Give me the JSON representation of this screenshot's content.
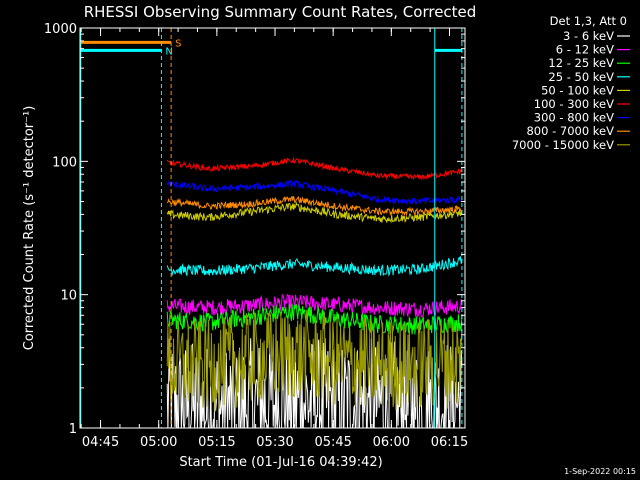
{
  "chart_data": {
    "type": "line",
    "title": "RHESSI Observing Summary Count Rates, Corrected",
    "xlabel": "Start Time (01-Jul-16 04:39:42)",
    "ylabel": "Corrected Count Rate (s⁻¹ detector⁻¹)",
    "x_ticks": [
      "04:45",
      "05:00",
      "05:15",
      "05:30",
      "05:45",
      "06:00",
      "06:15"
    ],
    "x_tick_minutes": [
      5.3,
      20.3,
      35.3,
      50.3,
      65.3,
      80.3,
      95.3
    ],
    "xlim_minutes": [
      0,
      99.3
    ],
    "y_ticks": [
      "1",
      "10",
      "100",
      "1000"
    ],
    "ylim": [
      1,
      1000
    ],
    "y_scale": "log",
    "grid": false,
    "legend_placement": "top-right",
    "legend_title": "Det 1,3, Att 0",
    "data_start_minute": 22.5,
    "data_end_minute": 98.5,
    "series": [
      {
        "name": "3 - 6 keV",
        "color": "#ffffff",
        "level": [
          1.5,
          1.4,
          1.5,
          1.6,
          1.5,
          1.5,
          1.4,
          1.6
        ],
        "noise": 0.5
      },
      {
        "name": "6 - 12 keV",
        "color": "#ff00ff",
        "level": [
          8.2,
          8.0,
          8.3,
          8.8,
          8.4,
          8.0,
          7.8,
          8.2
        ],
        "noise": 0.06
      },
      {
        "name": "12 - 25 keV",
        "color": "#00ff00",
        "level": [
          6.5,
          6.2,
          6.8,
          7.5,
          6.6,
          6.0,
          5.9,
          6.2
        ],
        "noise": 0.07
      },
      {
        "name": "25 - 50 keV",
        "color": "#00ffff",
        "level": [
          15.5,
          15.0,
          15.8,
          17.0,
          16.0,
          15.2,
          15.5,
          18.0
        ],
        "noise": 0.04
      },
      {
        "name": "50 - 100 keV",
        "color": "#cccc00",
        "level": [
          40,
          38,
          42,
          46,
          40,
          37,
          38,
          41
        ],
        "noise": 0.03
      },
      {
        "name": "100 - 300 keV",
        "color": "#ff0000",
        "level": [
          98,
          88,
          92,
          102,
          88,
          78,
          76,
          84
        ],
        "noise": 0.02
      },
      {
        "name": "300 - 800 keV",
        "color": "#0000ff",
        "level": [
          68,
          62,
          64,
          68,
          60,
          52,
          50,
          52
        ],
        "noise": 0.025
      },
      {
        "name": "800 - 7000 keV",
        "color": "#ff8c00",
        "level": [
          50,
          46,
          48,
          52,
          46,
          42,
          42,
          44
        ],
        "noise": 0.025
      },
      {
        "name": "7000 - 15000 keV",
        "color": "#999900",
        "level": [
          3.0,
          2.9,
          3.3,
          3.6,
          3.2,
          3.0,
          3.0,
          3.2
        ],
        "noise": 0.35
      }
    ],
    "annotations": [
      {
        "label": "S",
        "color": "#ff8c00",
        "y_value": 780,
        "x_from_minute": 0,
        "x_to_minute": 23.5
      },
      {
        "label": "N",
        "color": "#00ffff",
        "y_value": 680,
        "x_from_minute": 0,
        "x_to_minute": 21.0
      },
      {
        "label": "",
        "color": "#00ffff",
        "y_value": 680,
        "x_from_minute": 91.5,
        "x_to_minute": 98.5
      }
    ],
    "markers": [
      {
        "minute": 0.2,
        "color": "#00ffff",
        "style": "solid"
      },
      {
        "minute": 21.0,
        "color": "#00ffff",
        "style": "dashed"
      },
      {
        "minute": 23.5,
        "color": "#ff8c00",
        "style": "dashed"
      },
      {
        "minute": 91.5,
        "color": "#00ffff",
        "style": "solid"
      },
      {
        "minute": 98.5,
        "color": "#00ffff",
        "style": "dashed"
      }
    ]
  },
  "footer_timestamp": "1-Sep-2022 00:15"
}
